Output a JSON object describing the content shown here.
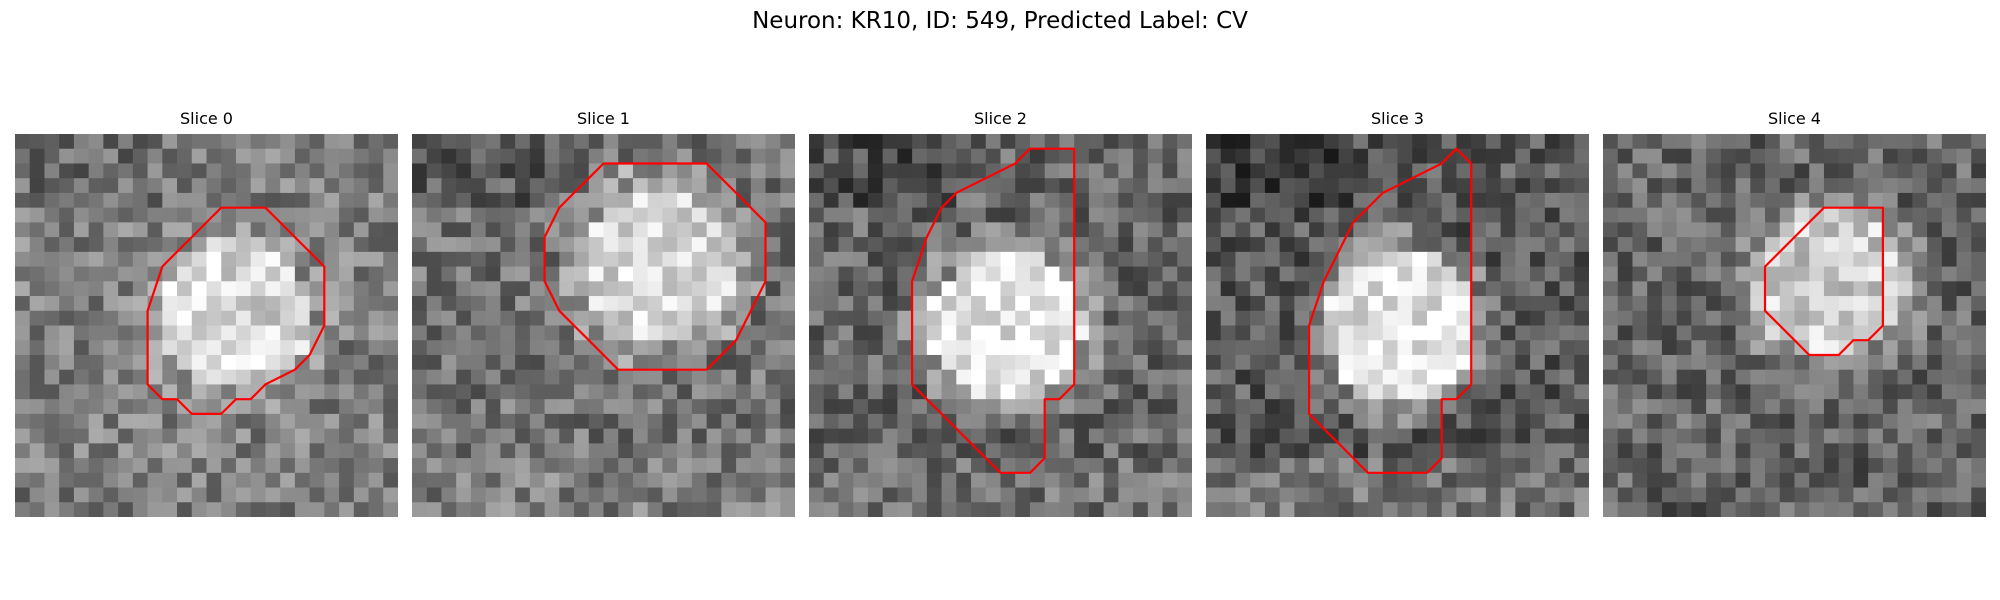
{
  "title": "Neuron: KR10, ID: 549, Predicted Label: CV",
  "contour_color": "#ff0000",
  "slices": [
    {
      "label": "Slice 0",
      "seed": 11,
      "tone": [
        0.35,
        0.85,
        0.55,
        0.5,
        0.45
      ],
      "contour": [
        [
          17,
          5
        ],
        [
          18,
          6
        ],
        [
          19,
          7
        ],
        [
          20,
          8
        ],
        [
          21,
          9
        ],
        [
          21,
          11
        ],
        [
          21,
          13
        ],
        [
          20,
          15
        ],
        [
          19,
          16
        ],
        [
          17,
          17
        ],
        [
          16,
          18
        ],
        [
          15,
          18
        ],
        [
          14,
          19
        ],
        [
          13,
          19
        ],
        [
          12,
          19
        ],
        [
          11,
          18
        ],
        [
          10,
          18
        ],
        [
          9,
          17
        ],
        [
          9,
          15
        ],
        [
          9,
          12
        ],
        [
          10,
          9
        ],
        [
          11,
          8
        ],
        [
          12,
          7
        ],
        [
          13,
          6
        ],
        [
          14,
          5
        ],
        [
          16,
          5
        ]
      ]
    },
    {
      "label": "Slice 1",
      "seed": 23,
      "tone": [
        0.25,
        0.85,
        0.6,
        0.45,
        0.55
      ],
      "contour": [
        [
          18,
          2
        ],
        [
          20,
          2
        ],
        [
          21,
          3
        ],
        [
          22,
          4
        ],
        [
          23,
          5
        ],
        [
          24,
          6
        ],
        [
          24,
          8
        ],
        [
          24,
          10
        ],
        [
          23,
          12
        ],
        [
          22,
          14
        ],
        [
          21,
          15
        ],
        [
          20,
          16
        ],
        [
          18,
          16
        ],
        [
          16,
          16
        ],
        [
          14,
          16
        ],
        [
          13,
          15
        ],
        [
          12,
          14
        ],
        [
          11,
          13
        ],
        [
          10,
          12
        ],
        [
          9,
          10
        ],
        [
          9,
          7
        ],
        [
          10,
          5
        ],
        [
          11,
          4
        ],
        [
          12,
          3
        ],
        [
          13,
          2
        ],
        [
          15,
          2
        ]
      ]
    },
    {
      "label": "Slice 2",
      "seed": 37,
      "tone": [
        0.2,
        0.9,
        0.55,
        0.4,
        0.5
      ],
      "contour": [
        [
          15,
          1
        ],
        [
          18,
          1
        ],
        [
          18,
          3
        ],
        [
          18,
          6
        ],
        [
          18,
          9
        ],
        [
          18,
          11
        ],
        [
          18,
          13
        ],
        [
          18,
          15
        ],
        [
          18,
          17
        ],
        [
          17,
          18
        ],
        [
          16,
          18
        ],
        [
          16,
          20
        ],
        [
          16,
          22
        ],
        [
          15,
          23
        ],
        [
          13,
          23
        ],
        [
          12,
          22
        ],
        [
          11,
          21
        ],
        [
          10,
          20
        ],
        [
          9,
          19
        ],
        [
          8,
          18
        ],
        [
          7,
          17
        ],
        [
          7,
          14
        ],
        [
          7,
          10
        ],
        [
          8,
          7
        ],
        [
          9,
          5
        ],
        [
          10,
          4
        ],
        [
          12,
          3
        ],
        [
          14,
          2
        ]
      ]
    },
    {
      "label": "Slice 3",
      "seed": 53,
      "tone": [
        0.15,
        0.9,
        0.5,
        0.35,
        0.6
      ],
      "contour": [
        [
          17,
          1
        ],
        [
          18,
          2
        ],
        [
          18,
          5
        ],
        [
          18,
          8
        ],
        [
          18,
          11
        ],
        [
          18,
          14
        ],
        [
          18,
          17
        ],
        [
          17,
          18
        ],
        [
          16,
          18
        ],
        [
          16,
          20
        ],
        [
          16,
          22
        ],
        [
          15,
          23
        ],
        [
          13,
          23
        ],
        [
          11,
          23
        ],
        [
          10,
          22
        ],
        [
          9,
          21
        ],
        [
          8,
          20
        ],
        [
          7,
          19
        ],
        [
          7,
          16
        ],
        [
          7,
          13
        ],
        [
          8,
          10
        ],
        [
          9,
          8
        ],
        [
          10,
          6
        ],
        [
          11,
          5
        ],
        [
          12,
          4
        ],
        [
          14,
          3
        ],
        [
          16,
          2
        ]
      ]
    },
    {
      "label": "Slice 4",
      "seed": 71,
      "tone": [
        0.4,
        0.8,
        0.5,
        0.4,
        0.35
      ],
      "contour": [
        [
          16,
          5
        ],
        [
          19,
          5
        ],
        [
          19,
          7
        ],
        [
          19,
          9
        ],
        [
          19,
          11
        ],
        [
          19,
          13
        ],
        [
          18,
          14
        ],
        [
          17,
          14
        ],
        [
          16,
          15
        ],
        [
          14,
          15
        ],
        [
          13,
          14
        ],
        [
          12,
          13
        ],
        [
          11,
          12
        ],
        [
          11,
          9
        ],
        [
          12,
          8
        ],
        [
          13,
          7
        ],
        [
          14,
          6
        ],
        [
          15,
          5
        ]
      ]
    }
  ]
}
